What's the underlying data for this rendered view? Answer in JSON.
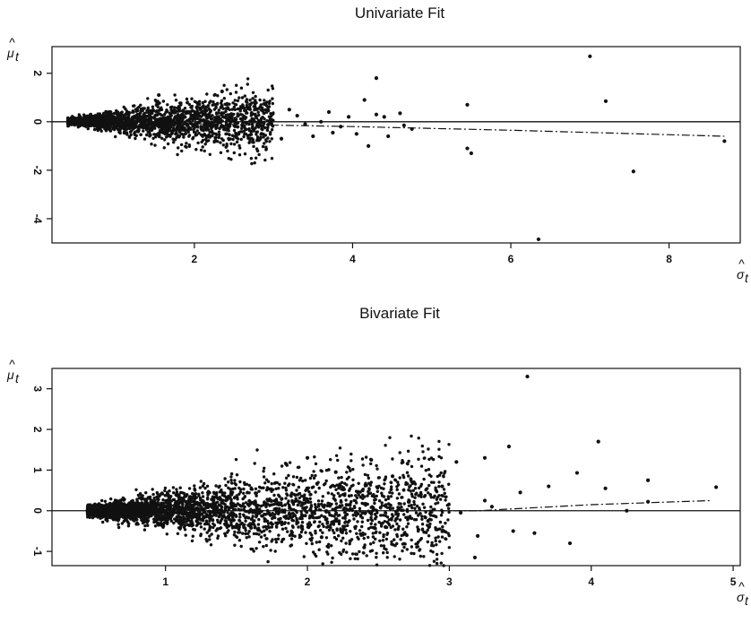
{
  "chart_data": [
    {
      "type": "scatter",
      "title": "Univariate Fit",
      "xlabel": "σ̂t",
      "ylabel": "μ̂t",
      "xlim": [
        0.2,
        8.9
      ],
      "ylim": [
        -5.0,
        3.1
      ],
      "xticks": [
        2,
        4,
        6,
        8
      ],
      "yticks": [
        -4,
        -2,
        0,
        2
      ],
      "xtick_labels": [
        "2",
        "4",
        "6",
        "8"
      ],
      "ytick_labels": [
        "-4",
        "-2",
        "0",
        "2"
      ],
      "reference_line_y": 0,
      "fit_line": [
        [
          2.0,
          -0.08
        ],
        [
          4.0,
          -0.2
        ],
        [
          6.0,
          -0.35
        ],
        [
          8.7,
          -0.6
        ]
      ],
      "cloud": {
        "x_start": 0.4,
        "x_end": 3.0,
        "count": 2400
      },
      "points": [
        [
          4.3,
          1.8
        ],
        [
          7.0,
          2.7
        ],
        [
          7.2,
          0.85
        ],
        [
          7.55,
          -2.05
        ],
        [
          6.35,
          -4.85
        ],
        [
          5.45,
          0.7
        ],
        [
          5.45,
          -1.1
        ],
        [
          5.5,
          -1.3
        ],
        [
          8.7,
          -0.8
        ],
        [
          4.15,
          0.9
        ],
        [
          4.2,
          -1.0
        ],
        [
          4.3,
          0.3
        ],
        [
          4.4,
          0.2
        ],
        [
          4.6,
          0.35
        ],
        [
          4.65,
          -0.15
        ],
        [
          3.95,
          0.2
        ],
        [
          4.05,
          -0.5
        ],
        [
          3.7,
          0.4
        ],
        [
          3.5,
          -0.6
        ],
        [
          3.3,
          0.25
        ],
        [
          3.6,
          0.0
        ],
        [
          3.85,
          -0.2
        ],
        [
          4.45,
          -0.6
        ],
        [
          4.75,
          -0.3
        ],
        [
          3.1,
          -0.7
        ],
        [
          3.2,
          0.5
        ],
        [
          3.4,
          -0.1
        ],
        [
          3.75,
          -0.45
        ],
        [
          2.35,
          1.25
        ],
        [
          1.55,
          1.1
        ]
      ]
    },
    {
      "type": "scatter",
      "title": "Bivariate Fit",
      "xlabel": "σ̂t",
      "ylabel": "μ̂t",
      "xlim": [
        0.2,
        5.05
      ],
      "ylim": [
        -1.35,
        3.5
      ],
      "xticks": [
        1,
        2,
        3,
        4,
        5
      ],
      "yticks": [
        -1,
        0,
        1,
        2,
        3
      ],
      "xtick_labels": [
        "1",
        "2",
        "3",
        "4",
        "5"
      ],
      "ytick_labels": [
        "-1",
        "0",
        "1",
        "2",
        "3"
      ],
      "reference_line_y": 0,
      "fit_line": [
        [
          2.6,
          0.0
        ],
        [
          3.2,
          0.0
        ],
        [
          4.0,
          0.15
        ],
        [
          4.85,
          0.25
        ]
      ],
      "cloud": {
        "x_start": 0.45,
        "x_end": 3.0,
        "count": 3400
      },
      "points": [
        [
          3.55,
          3.3
        ],
        [
          4.05,
          1.7
        ],
        [
          3.42,
          1.58
        ],
        [
          3.25,
          1.3
        ],
        [
          3.05,
          1.2
        ],
        [
          3.9,
          0.93
        ],
        [
          3.7,
          0.6
        ],
        [
          4.1,
          0.55
        ],
        [
          4.4,
          0.75
        ],
        [
          4.88,
          0.58
        ],
        [
          3.5,
          0.45
        ],
        [
          4.4,
          0.22
        ],
        [
          3.45,
          -0.5
        ],
        [
          3.6,
          -0.55
        ],
        [
          3.85,
          -0.8
        ],
        [
          3.2,
          -0.62
        ],
        [
          3.18,
          -1.15
        ],
        [
          3.08,
          -0.05
        ],
        [
          3.25,
          0.25
        ],
        [
          3.3,
          0.1
        ],
        [
          2.95,
          0.6
        ],
        [
          2.8,
          0.4
        ],
        [
          2.7,
          -0.6
        ],
        [
          2.55,
          -0.4
        ],
        [
          2.45,
          1.25
        ],
        [
          2.3,
          -0.75
        ],
        [
          2.2,
          0.95
        ],
        [
          2.6,
          0.85
        ],
        [
          2.75,
          0.7
        ],
        [
          2.85,
          -0.25
        ],
        [
          2.0,
          1.3
        ],
        [
          1.85,
          1.15
        ],
        [
          2.4,
          -0.9
        ],
        [
          2.1,
          -0.65
        ],
        [
          4.25,
          0.0
        ]
      ]
    }
  ]
}
